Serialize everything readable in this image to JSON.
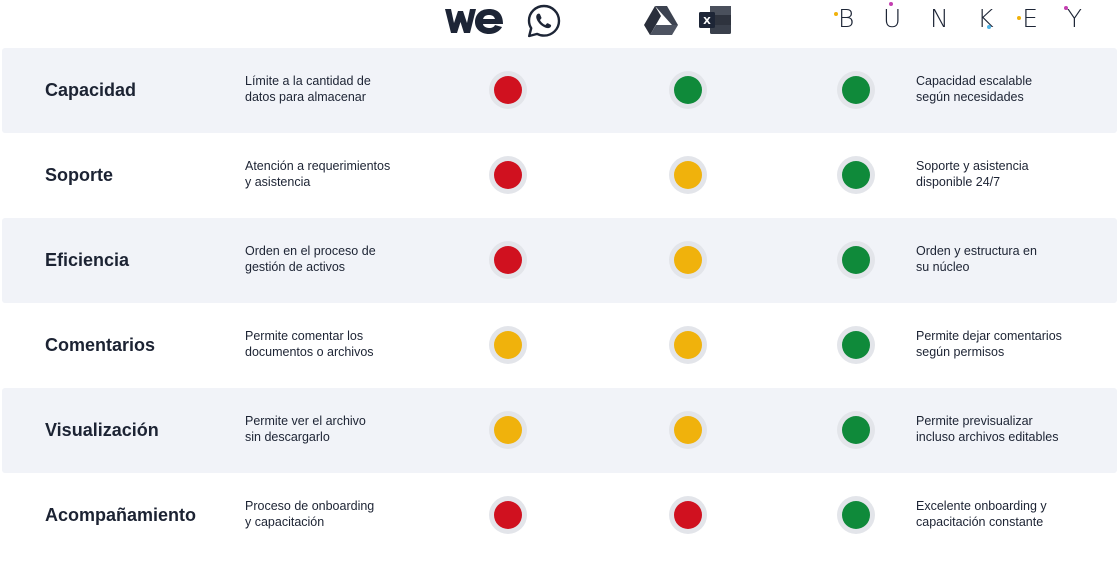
{
  "colors": {
    "red": "#d0111f",
    "yellow": "#f0b20c",
    "green": "#0f8a3a",
    "row_shade": "#f1f3f8",
    "ring": "#e3e5ea"
  },
  "columns": [
    {
      "id": "wetransfer-whatsapp",
      "icons": [
        "wetransfer-logo-icon",
        "whatsapp-logo-icon"
      ],
      "logo_text": "we"
    },
    {
      "id": "drive-excel",
      "icons": [
        "google-drive-logo-icon",
        "excel-logo-icon"
      ],
      "logo_text": "X"
    },
    {
      "id": "bunkey",
      "icons": [
        "bunkey-logo-icon"
      ],
      "logo_text": "BUNKEY"
    }
  ],
  "rows": [
    {
      "criterion": "Capacidad",
      "description": [
        "Límite a la cantidad de",
        "datos para almacenar"
      ],
      "ratings": [
        "red",
        "green",
        "green"
      ],
      "note": [
        "Capacidad escalable",
        "según necesidades"
      ]
    },
    {
      "criterion": "Soporte",
      "description": [
        "Atención a requerimientos",
        "y asistencia"
      ],
      "ratings": [
        "red",
        "yellow",
        "green"
      ],
      "note": [
        "Soporte y asistencia",
        "disponible 24/7"
      ]
    },
    {
      "criterion": "Eficiencia",
      "description": [
        "Orden en el proceso de",
        "gestión de activos"
      ],
      "ratings": [
        "red",
        "yellow",
        "green"
      ],
      "note": [
        "Orden y estructura en",
        "su núcleo"
      ]
    },
    {
      "criterion": "Comentarios",
      "description": [
        "Permite comentar los",
        "documentos o archivos"
      ],
      "ratings": [
        "yellow",
        "yellow",
        "green"
      ],
      "note": [
        "Permite dejar comentarios",
        "según permisos"
      ]
    },
    {
      "criterion": "Visualización",
      "description": [
        "Permite ver el archivo",
        "sin descargarlo"
      ],
      "ratings": [
        "yellow",
        "yellow",
        "green"
      ],
      "note": [
        "Permite previsualizar",
        "incluso archivos editables"
      ]
    },
    {
      "criterion": "Acompañamiento",
      "description": [
        "Proceso de onboarding",
        "y capacitación"
      ],
      "ratings": [
        "red",
        "red",
        "green"
      ],
      "note": [
        "Excelente onboarding y",
        "capacitación constante"
      ]
    }
  ]
}
